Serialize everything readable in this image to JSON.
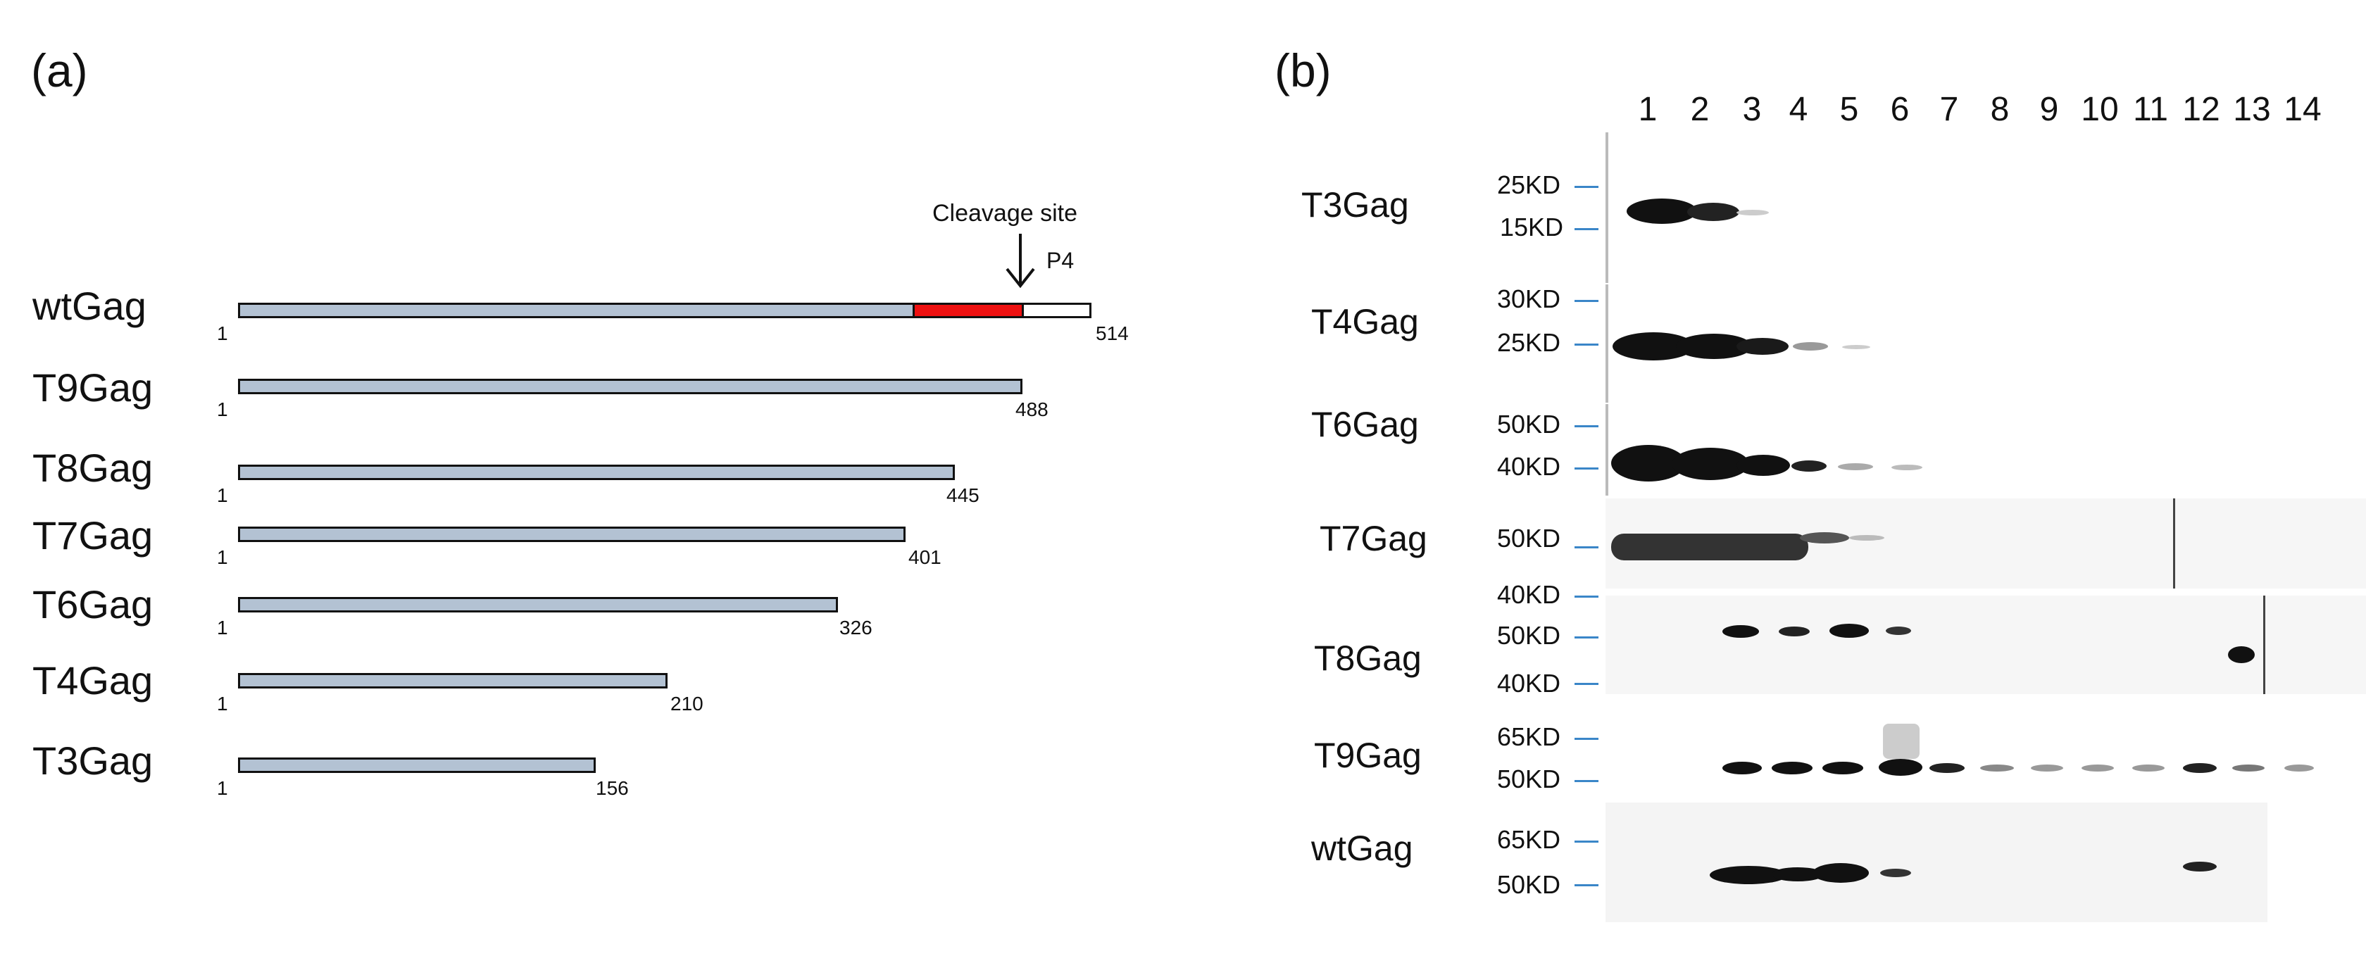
{
  "panel_a": {
    "label": "(a)",
    "cleavage_label": "Cleavage site",
    "p4_label": "P4",
    "start_label": "1",
    "constructs": [
      {
        "name": "wtGag",
        "end": "514"
      },
      {
        "name": "T9Gag",
        "end": "488"
      },
      {
        "name": "T8Gag",
        "end": "445"
      },
      {
        "name": "T7Gag",
        "end": "401"
      },
      {
        "name": "T6Gag",
        "end": "326"
      },
      {
        "name": "T4Gag",
        "end": "210"
      },
      {
        "name": "T3Gag",
        "end": "156"
      }
    ],
    "colors": {
      "bar": "#b3c2d3",
      "red_segment": "#ee1111",
      "white_segment": "#ffffff"
    }
  },
  "panel_b": {
    "label": "(b)",
    "lanes": [
      "1",
      "2",
      "3",
      "4",
      "5",
      "6",
      "7",
      "8",
      "9",
      "10",
      "11",
      "12",
      "13",
      "14"
    ],
    "blots": [
      {
        "name": "T3Gag",
        "markers": [
          "25KD",
          "15KD"
        ]
      },
      {
        "name": "T4Gag",
        "markers": [
          "30KD",
          "25KD"
        ]
      },
      {
        "name": "T6Gag",
        "markers": [
          "50KD",
          "40KD"
        ]
      },
      {
        "name": "T7Gag",
        "markers": [
          "50KD",
          "40KD"
        ]
      },
      {
        "name": "T8Gag",
        "markers": [
          "50KD",
          "40KD"
        ]
      },
      {
        "name": "T9Gag",
        "markers": [
          "65KD",
          "50KD"
        ]
      },
      {
        "name": "wtGag",
        "markers": [
          "65KD",
          "50KD"
        ]
      }
    ],
    "colors": {
      "marker_tick": "#3a86c8"
    }
  }
}
